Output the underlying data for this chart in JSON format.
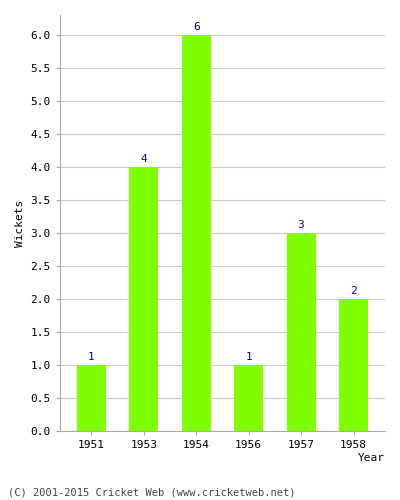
{
  "years": [
    "1951",
    "1953",
    "1954",
    "1956",
    "1957",
    "1958"
  ],
  "values": [
    1,
    4,
    6,
    1,
    3,
    2
  ],
  "bar_color": "#7fff00",
  "bar_edgecolor": "#7fff00",
  "label_color": "#00008b",
  "ylabel": "Wickets",
  "xlabel": "Year",
  "ylim": [
    0,
    6.3
  ],
  "yticks": [
    0.0,
    0.5,
    1.0,
    1.5,
    2.0,
    2.5,
    3.0,
    3.5,
    4.0,
    4.5,
    5.0,
    5.5,
    6.0
  ],
  "grid_color": "#cccccc",
  "background_color": "#ffffff",
  "footer_text": "(C) 2001-2015 Cricket Web (www.cricketweb.net)",
  "footer_color": "#444444",
  "label_fontsize": 8,
  "axis_fontsize": 8,
  "footer_fontsize": 7.5,
  "bar_width": 0.55
}
